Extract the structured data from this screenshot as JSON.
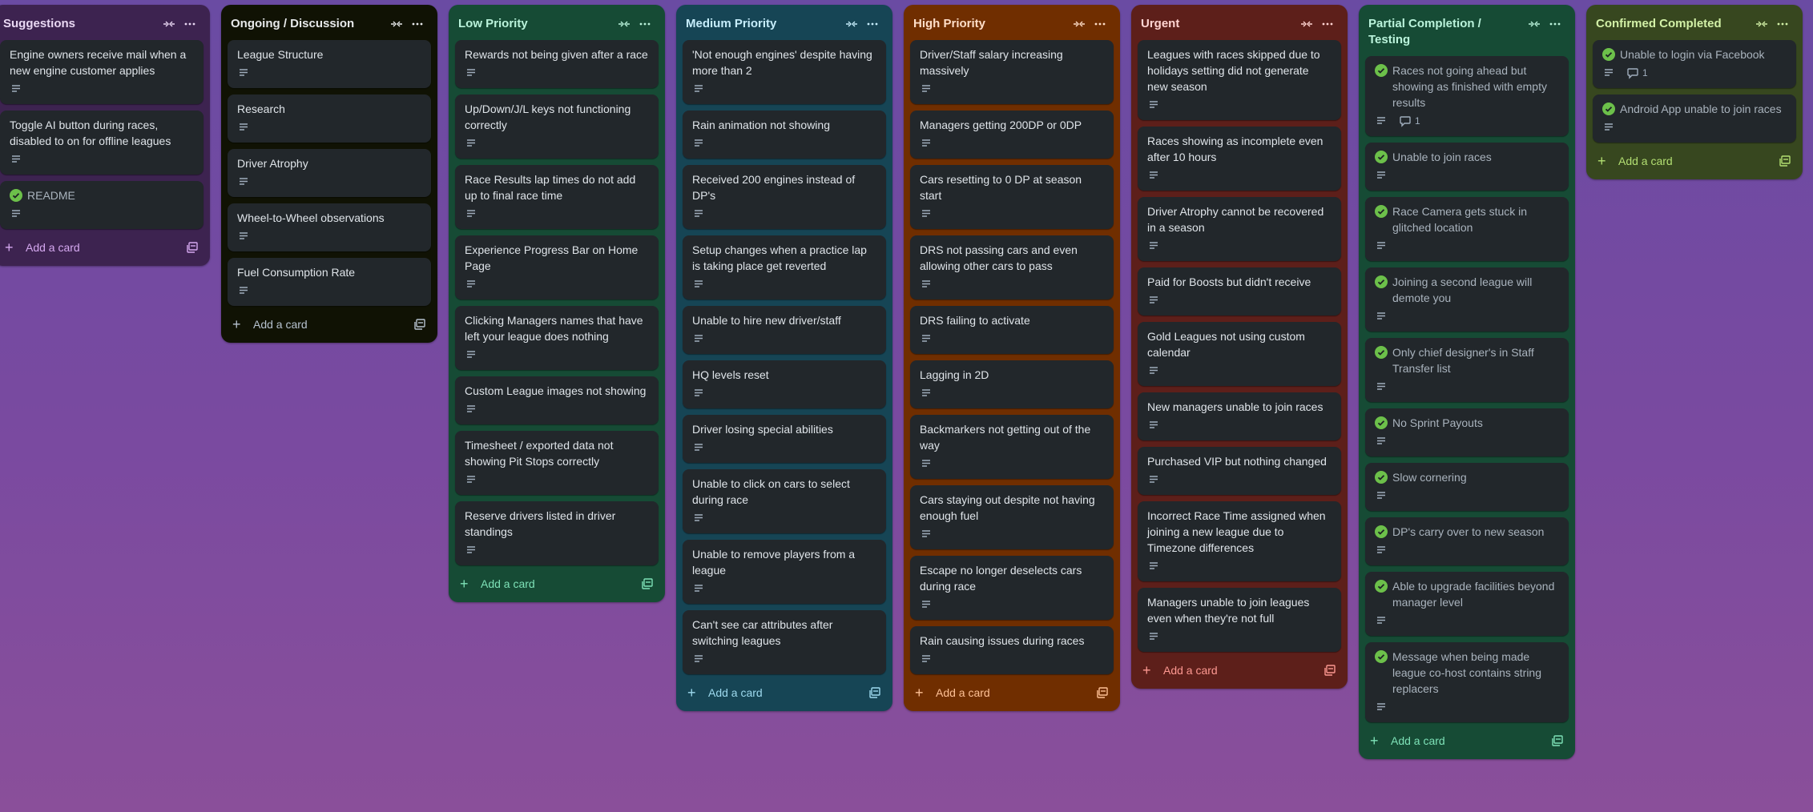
{
  "lists": [
    {
      "id": "suggestions",
      "title": "Suggestions",
      "bg": "#3d2350",
      "title_color": "#e9d8f3",
      "add_color": "#d5a8f0",
      "add_label": "Add a card",
      "cards": [
        {
          "title": "Engine owners receive mail when a new engine customer applies",
          "done": false,
          "comments": ""
        },
        {
          "title": "Toggle AI button during races, disabled to on for offline leagues",
          "done": false,
          "comments": ""
        },
        {
          "title": "README",
          "done": true,
          "comments": ""
        }
      ]
    },
    {
      "id": "ongoing",
      "title": "Ongoing / Discussion",
      "bg": "#101204",
      "title_color": "#e7e9ea",
      "add_color": "#b6c2cf",
      "add_label": "Add a card",
      "cards": [
        {
          "title": "League Structure",
          "done": false,
          "comments": ""
        },
        {
          "title": "Research",
          "done": false,
          "comments": ""
        },
        {
          "title": "Driver Atrophy",
          "done": false,
          "comments": ""
        },
        {
          "title": "Wheel-to-Wheel observations",
          "done": false,
          "comments": ""
        },
        {
          "title": "Fuel Consumption Rate",
          "done": false,
          "comments": ""
        }
      ]
    },
    {
      "id": "low",
      "title": "Low Priority",
      "bg": "#164b35",
      "title_color": "#baf3db",
      "add_color": "#7ee2b8",
      "add_label": "Add a card",
      "cards": [
        {
          "title": "Rewards not being given after a race",
          "done": false,
          "comments": ""
        },
        {
          "title": "Up/Down/J/L keys not functioning correctly",
          "done": false,
          "comments": ""
        },
        {
          "title": "Race Results lap times do not add up to final race time",
          "done": false,
          "comments": ""
        },
        {
          "title": "Experience Progress Bar on Home Page",
          "done": false,
          "comments": ""
        },
        {
          "title": "Clicking Managers names that have left your league does nothing",
          "done": false,
          "comments": ""
        },
        {
          "title": "Custom League images not showing",
          "done": false,
          "comments": ""
        },
        {
          "title": "Timesheet / exported data not showing Pit Stops correctly",
          "done": false,
          "comments": ""
        },
        {
          "title": "Reserve drivers listed in driver standings",
          "done": false,
          "comments": ""
        }
      ]
    },
    {
      "id": "medium",
      "title": "Medium Priority",
      "bg": "#164555",
      "title_color": "#c6edfb",
      "add_color": "#9dd9ee",
      "add_label": "Add a card",
      "cards": [
        {
          "title": "'Not enough engines' despite having more than 2",
          "done": false,
          "comments": ""
        },
        {
          "title": "Rain animation not showing",
          "done": false,
          "comments": ""
        },
        {
          "title": "Received 200 engines instead of DP's",
          "done": false,
          "comments": ""
        },
        {
          "title": "Setup changes when a practice lap is taking place get reverted",
          "done": false,
          "comments": ""
        },
        {
          "title": "Unable to hire new driver/staff",
          "done": false,
          "comments": ""
        },
        {
          "title": "HQ levels reset",
          "done": false,
          "comments": ""
        },
        {
          "title": "Driver losing special abilities",
          "done": false,
          "comments": ""
        },
        {
          "title": "Unable to click on cars to select during race",
          "done": false,
          "comments": ""
        },
        {
          "title": "Unable to remove players from a league",
          "done": false,
          "comments": ""
        },
        {
          "title": "Can't see car attributes after switching leagues",
          "done": false,
          "comments": ""
        }
      ]
    },
    {
      "id": "high",
      "title": "High Priority",
      "bg": "#702e00",
      "title_color": "#fedec8",
      "add_color": "#fec195",
      "add_label": "Add a card",
      "cards": [
        {
          "title": "Driver/Staff salary increasing massively",
          "done": false,
          "comments": ""
        },
        {
          "title": "Managers getting 200DP or 0DP",
          "done": false,
          "comments": ""
        },
        {
          "title": "Cars resetting to 0 DP at season start",
          "done": false,
          "comments": ""
        },
        {
          "title": "DRS not passing cars and even allowing other cars to pass",
          "done": false,
          "comments": ""
        },
        {
          "title": "DRS failing to activate",
          "done": false,
          "comments": ""
        },
        {
          "title": "Lagging in 2D",
          "done": false,
          "comments": ""
        },
        {
          "title": "Backmarkers not getting out of the way",
          "done": false,
          "comments": ""
        },
        {
          "title": "Cars staying out despite not having enough fuel",
          "done": false,
          "comments": ""
        },
        {
          "title": "Escape no longer deselects cars during race",
          "done": false,
          "comments": ""
        },
        {
          "title": "Rain causing issues during races",
          "done": false,
          "comments": ""
        }
      ]
    },
    {
      "id": "urgent",
      "title": "Urgent",
      "bg": "#5d1f1a",
      "title_color": "#ffd5d2",
      "add_color": "#fd9891",
      "add_label": "Add a card",
      "cards": [
        {
          "title": "Leagues with races skipped due to holidays setting did not generate new season",
          "done": false,
          "comments": ""
        },
        {
          "title": "Races showing as incomplete even after 10 hours",
          "done": false,
          "comments": ""
        },
        {
          "title": "Driver Atrophy cannot be recovered in a season",
          "done": false,
          "comments": ""
        },
        {
          "title": "Paid for Boosts but didn't receive",
          "done": false,
          "comments": ""
        },
        {
          "title": "Gold Leagues not using custom calendar",
          "done": false,
          "comments": ""
        },
        {
          "title": "New managers unable to join races",
          "done": false,
          "comments": ""
        },
        {
          "title": "Purchased VIP but nothing changed",
          "done": false,
          "comments": ""
        },
        {
          "title": "Incorrect Race Time assigned when joining a new league due to Timezone differences",
          "done": false,
          "comments": ""
        },
        {
          "title": "Managers unable to join leagues even when they're not full",
          "done": false,
          "comments": ""
        }
      ]
    },
    {
      "id": "partial",
      "title": "Partial Completion / Testing",
      "bg": "#164b35",
      "title_color": "#baf3db",
      "add_color": "#7ee2b8",
      "add_label": "Add a card",
      "cards": [
        {
          "title": "Races not going ahead but showing as finished with empty results",
          "done": true,
          "comments": "1"
        },
        {
          "title": "Unable to join races",
          "done": true,
          "comments": ""
        },
        {
          "title": "Race Camera gets stuck in glitched location",
          "done": true,
          "comments": ""
        },
        {
          "title": "Joining a second league will demote you",
          "done": true,
          "comments": ""
        },
        {
          "title": "Only chief designer's in Staff Transfer list",
          "done": true,
          "comments": ""
        },
        {
          "title": "No Sprint Payouts",
          "done": true,
          "comments": ""
        },
        {
          "title": "Slow cornering",
          "done": true,
          "comments": ""
        },
        {
          "title": "DP's carry over to new season",
          "done": true,
          "comments": ""
        },
        {
          "title": "Able to upgrade facilities beyond manager level",
          "done": true,
          "comments": ""
        },
        {
          "title": "Message when being made league co-host contains string replacers",
          "done": true,
          "comments": ""
        }
      ]
    },
    {
      "id": "confirmed",
      "title": "Confirmed Completed",
      "bg": "#37471f",
      "title_color": "#d3f1a7",
      "add_color": "#b3df72",
      "add_label": "Add a card",
      "cards": [
        {
          "title": "Unable to login via Facebook",
          "done": true,
          "comments": "1"
        },
        {
          "title": "Android App unable to join races",
          "done": true,
          "comments": ""
        }
      ]
    }
  ],
  "icons": {
    "collapse": "collapse-icon",
    "more": "more-icon",
    "description": "description-icon",
    "comment": "comment-icon",
    "check": "check-circle-icon",
    "plus": "plus-icon",
    "template": "template-icon"
  },
  "colors": {
    "check_green": "#6cc04a"
  }
}
